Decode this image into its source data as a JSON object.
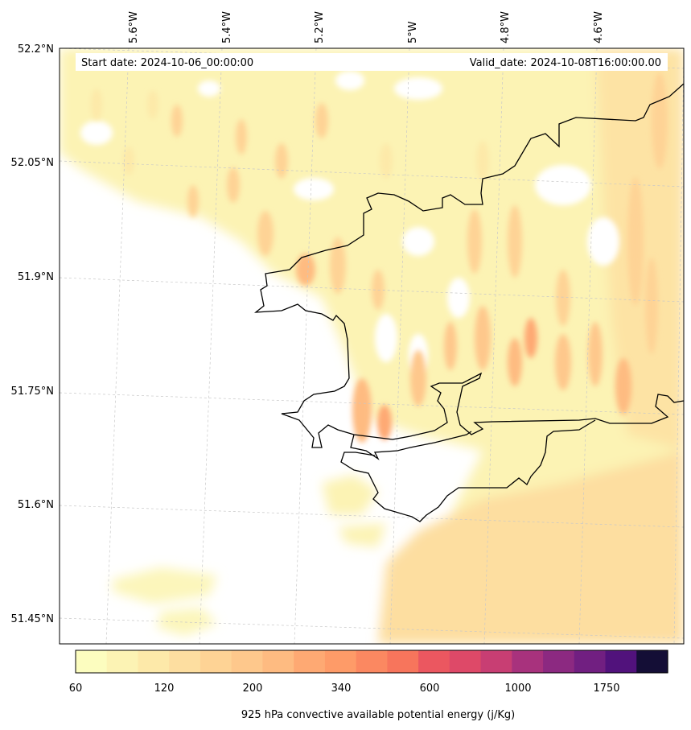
{
  "header": {
    "start_date": "Start date: 2024-10-06_00:00:00",
    "valid_date": "Valid_date: 2024-10-08T16:00:00.00"
  },
  "axes": {
    "lon_labels": [
      "5.6°W",
      "5.4°W",
      "5.2°W",
      "5°W",
      "4.8°W",
      "4.6°W"
    ],
    "lat_labels": [
      "52.2°N",
      "52.05°N",
      "51.9°N",
      "51.75°N",
      "51.6°N",
      "51.45°N"
    ]
  },
  "colorbar": {
    "tick_labels": [
      "60",
      "120",
      "200",
      "340",
      "600",
      "1000",
      "1750"
    ],
    "label": "925 hPa convective available potential energy (j/Kg)",
    "colors": [
      "#fcfdbf",
      "#fcf3b4",
      "#fde9a9",
      "#fddea0",
      "#fed395",
      "#fec88c",
      "#febb81",
      "#fea973",
      "#fe9b68",
      "#fb8861",
      "#f7755c",
      "#eb5760",
      "#de4968",
      "#c83e73",
      "#a8327d",
      "#8c2981",
      "#711f81",
      "#51127c",
      "#140e36"
    ]
  }
}
